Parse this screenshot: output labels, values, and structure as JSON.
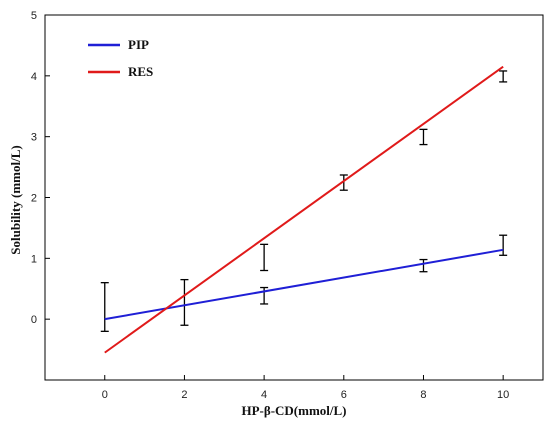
{
  "chart_data": {
    "type": "line",
    "title": "",
    "xlabel": "HP-β-CD(mmol/L)",
    "ylabel": "Solubility (mmol/L)",
    "xlim": [
      -1.5,
      11
    ],
    "ylim": [
      -1,
      5
    ],
    "x_ticks": [
      0,
      2,
      4,
      6,
      8,
      10
    ],
    "y_ticks": [
      0,
      1,
      2,
      3,
      4,
      5
    ],
    "grid": false,
    "legend_position": "top-left",
    "series": [
      {
        "name": "PIP",
        "color": "#1f1fd6",
        "line_x": [
          0,
          10
        ],
        "line_y": [
          0.0,
          1.14
        ]
      },
      {
        "name": "RES",
        "color": "#e01a1a",
        "line_x": [
          0,
          10
        ],
        "line_y": [
          -0.55,
          4.15
        ]
      }
    ],
    "error_bars": [
      {
        "x": 0,
        "low": -0.2,
        "high": 0.6
      },
      {
        "x": 2,
        "low": -0.1,
        "high": 0.65
      },
      {
        "x": 4,
        "low": 0.25,
        "high": 0.52
      },
      {
        "x": 4,
        "low": 0.8,
        "high": 1.23
      },
      {
        "x": 6,
        "low": 2.12,
        "high": 2.37
      },
      {
        "x": 8,
        "low": 0.78,
        "high": 0.98
      },
      {
        "x": 8,
        "low": 2.87,
        "high": 3.12
      },
      {
        "x": 10,
        "low": 1.05,
        "high": 1.38
      },
      {
        "x": 10,
        "low": 3.9,
        "high": 4.08
      }
    ]
  }
}
